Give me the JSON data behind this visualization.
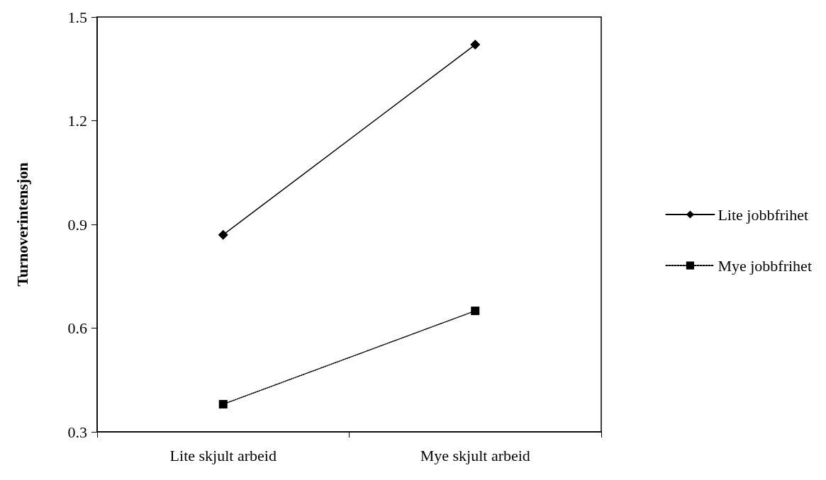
{
  "chart_data": {
    "type": "line",
    "ylabel": "Turnoverintensjon",
    "categories": [
      "Lite skjult arbeid",
      "Mye skjult arbeid"
    ],
    "series": [
      {
        "name": "Lite jobbfrihet",
        "color": "#000000",
        "values": [
          0.87,
          1.42
        ],
        "marker": "diamond",
        "line_style": "solid"
      },
      {
        "name": "Mye jobbfrihet",
        "color": "#000000",
        "values": [
          0.38,
          0.65
        ],
        "marker": "square",
        "line_style": "dotted"
      }
    ],
    "ylim": [
      0.3,
      1.5
    ],
    "yticks": [
      0.3,
      0.6,
      0.9,
      1.2,
      1.5
    ],
    "grid": false,
    "legend": "right"
  }
}
